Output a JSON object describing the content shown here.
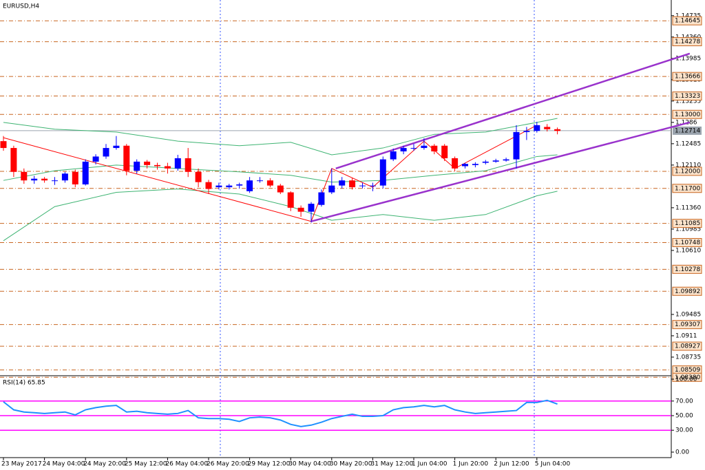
{
  "chart_data": [
    {
      "type": "candlestick",
      "title": "EURUSD,H4",
      "categories": [
        "23 May 2017",
        null,
        null,
        null,
        "24 May 04:00",
        null,
        null,
        null,
        "24 May 20:00",
        null,
        null,
        null,
        "25 May 12:00",
        null,
        null,
        null,
        "26 May 04:00",
        null,
        null,
        null,
        "26 May 20:00",
        null,
        null,
        null,
        "29 May 12:00",
        null,
        null,
        null,
        "30 May 04:00",
        null,
        null,
        null,
        "30 May 20:00",
        null,
        null,
        null,
        "31 May 12:00",
        null,
        null,
        null,
        "1 Jun 04:00",
        null,
        null,
        null,
        "1 Jun 20:00",
        null,
        null,
        null,
        "2 Jun 12:00",
        null,
        null,
        null,
        "5 Jun 04:00",
        null,
        null
      ],
      "open": [
        1.1253,
        1.1241,
        1.1199,
        1.1184,
        1.1187,
        1.1184,
        1.1184,
        1.1199,
        1.1177,
        1.1217,
        1.1226,
        1.1241,
        1.1245,
        1.1201,
        1.1217,
        1.1211,
        1.1209,
        1.1205,
        1.1223,
        1.1199,
        1.1181,
        1.1172,
        1.1172,
        1.1175,
        1.1165,
        1.1184,
        1.1184,
        1.1175,
        1.1163,
        1.1136,
        1.1129,
        1.1141,
        1.1163,
        1.1175,
        1.1184,
        1.1175,
        1.1175,
        1.1175,
        1.1221,
        1.1235,
        1.1241,
        1.1241,
        1.1245,
        1.1245,
        1.1223,
        1.1209,
        1.1211,
        1.1215,
        1.1217,
        1.1219,
        1.1221,
        1.1269,
        1.1271,
        1.1278,
        1.1274
      ],
      "high": [
        1.1262,
        1.1245,
        1.1205,
        1.1192,
        1.119,
        1.119,
        1.1199,
        1.1203,
        1.1221,
        1.123,
        1.1248,
        1.1262,
        1.1248,
        1.1221,
        1.122,
        1.1215,
        1.1215,
        1.1229,
        1.1241,
        1.1205,
        1.1185,
        1.118,
        1.1178,
        1.118,
        1.119,
        1.119,
        1.1188,
        1.1178,
        1.1165,
        1.114,
        1.1146,
        1.1168,
        1.1205,
        1.119,
        1.1188,
        1.118,
        1.118,
        1.1226,
        1.124,
        1.1245,
        1.1248,
        1.1258,
        1.1248,
        1.1248,
        1.1226,
        1.1215,
        1.1216,
        1.122,
        1.1222,
        1.1224,
        1.1281,
        1.1278,
        1.1287,
        1.1283,
        1.1277
      ],
      "low": [
        1.1236,
        1.119,
        1.1178,
        1.1178,
        1.118,
        1.1176,
        1.118,
        1.1172,
        1.1175,
        1.1212,
        1.1222,
        1.1238,
        1.1193,
        1.1196,
        1.1205,
        1.1203,
        1.1196,
        1.1201,
        1.119,
        1.1172,
        1.116,
        1.1168,
        1.1168,
        1.117,
        1.1162,
        1.118,
        1.1172,
        1.116,
        1.113,
        1.112,
        1.111,
        1.1138,
        1.116,
        1.117,
        1.1168,
        1.117,
        1.1165,
        1.117,
        1.1218,
        1.123,
        1.1236,
        1.1238,
        1.123,
        1.1218,
        1.12,
        1.1205,
        1.1207,
        1.1212,
        1.1215,
        1.1217,
        1.1205,
        1.1255,
        1.1268,
        1.127,
        1.1265
      ],
      "close": [
        1.1241,
        1.1199,
        1.1184,
        1.1187,
        1.1184,
        1.1184,
        1.1196,
        1.1177,
        1.1217,
        1.1226,
        1.1241,
        1.1245,
        1.1201,
        1.1217,
        1.1211,
        1.1209,
        1.1205,
        1.1223,
        1.1199,
        1.1181,
        1.1169,
        1.1175,
        1.1175,
        1.1177,
        1.1184,
        1.1184,
        1.1175,
        1.1163,
        1.1136,
        1.1129,
        1.1143,
        1.1163,
        1.1175,
        1.1184,
        1.1172,
        1.1175,
        1.1175,
        1.1221,
        1.1235,
        1.1241,
        1.1241,
        1.1245,
        1.1235,
        1.1223,
        1.1205,
        1.1213,
        1.1213,
        1.1217,
        1.1219,
        1.1221,
        1.1269,
        1.1271,
        1.1281,
        1.1274,
        1.1271
      ],
      "up_color": "#0000ff",
      "down_color": "#ff0000",
      "ylim": [
        1.0842,
        1.1495
      ],
      "yticks": [
        1.14735,
        {
          "value": 1.1436,
          "label": "1.14360"
        },
        1.13985,
        {
          "value": 1.1361,
          "label": "1.13610"
        },
        1.13235,
        1.1286,
        1.12485,
        {
          "value": 1.1211,
          "label": "1.12110"
        },
        {
          "value": 1.1136,
          "label": "1.11360"
        },
        1.10985,
        {
          "value": 1.1061,
          "label": "1.10610"
        },
        1.09485,
        1.0911,
        1.08735
      ],
      "levels": {
        "color": "#c8641e",
        "values": [
          1.14645,
          1.14278,
          1.13666,
          1.13323,
          {
            "value": 1.13,
            "label": "1.13000"
          },
          {
            "value": 1.12,
            "label": "1.12000"
          },
          {
            "value": 1.117,
            "label": "1.11700"
          },
          1.11085,
          1.10748,
          1.10278,
          1.09892,
          1.09307,
          1.08927,
          1.08509,
          {
            "value": 1.0838,
            "label": "1.08380"
          }
        ]
      },
      "last_price": {
        "value": 1.12714,
        "label": "1.12714",
        "color": "#9aa3ad"
      },
      "bands": {
        "color": "#3cb371",
        "x": [
          0,
          5,
          11,
          17,
          23,
          28,
          32,
          37,
          42,
          47,
          52,
          54
        ],
        "upper": [
          1.1286,
          1.1274,
          1.1269,
          1.1253,
          1.1245,
          1.1251,
          1.1229,
          1.1241,
          1.1265,
          1.1269,
          1.1286,
          1.1293
        ],
        "middle": [
          1.1184,
          1.1201,
          1.1211,
          1.1205,
          1.1199,
          1.1193,
          1.1181,
          1.1184,
          1.1193,
          1.1201,
          1.1226,
          1.1229
        ],
        "lower": [
          1.1078,
          1.1138,
          1.1163,
          1.1169,
          1.116,
          1.1138,
          1.1114,
          1.1124,
          1.1114,
          1.1124,
          1.1157,
          1.1165
        ]
      },
      "channel": {
        "color": "#9932cc",
        "lines": [
          {
            "x": [
              32.4,
              66.9
            ],
            "values": [
              1.1205,
              1.1407
            ]
          },
          {
            "x": [
              30,
              66.9
            ],
            "values": [
              1.1112,
              1.1286
            ]
          }
        ]
      },
      "zigzag": {
        "color": "#ff0000",
        "x": [
          0,
          30,
          32,
          36,
          41,
          44,
          52
        ],
        "values": [
          1.1259,
          1.1112,
          1.1205,
          1.1172,
          1.1253,
          1.1205,
          1.1281
        ]
      }
    },
    {
      "type": "line",
      "title": "RSI(14) 65.85",
      "series": [
        {
          "color": "#1e90ff",
          "values": [
            69,
            58,
            55,
            54,
            53,
            54,
            55,
            51,
            58,
            61,
            63,
            64,
            55,
            56,
            54,
            53,
            52,
            53,
            57,
            47,
            46,
            46,
            45,
            42,
            47,
            48,
            47,
            44,
            38,
            35,
            37,
            41,
            46,
            49,
            52,
            49,
            49,
            50,
            58,
            61,
            62,
            64,
            62,
            64,
            58,
            55,
            53,
            54,
            55,
            56,
            57,
            68,
            68,
            71,
            65.85
          ]
        }
      ],
      "ylim": [
        0,
        100
      ],
      "yticks": [
        {
          "value": 100,
          "label": "100.00"
        },
        {
          "value": 70,
          "label": "70.00"
        },
        {
          "value": 50,
          "label": "50.00"
        },
        {
          "value": 30,
          "label": "30.00"
        },
        {
          "value": 0,
          "label": "0.00"
        }
      ],
      "levels": {
        "color": "#ff00ff",
        "values": [
          70,
          50,
          30
        ]
      }
    }
  ]
}
